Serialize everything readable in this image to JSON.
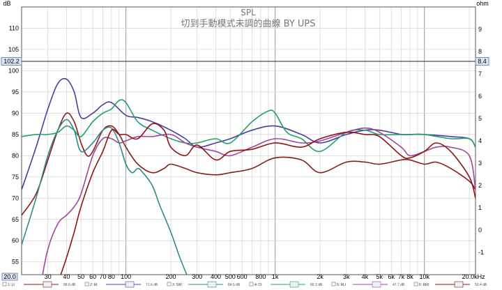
{
  "chart_data": {
    "type": "line",
    "title": "SPL",
    "subtitle": "切到手動模式未調的曲線 BY UPS",
    "ylabel": "dB",
    "y2label": "ohm",
    "xscale": "log",
    "xlim": [
      20,
      22000
    ],
    "ylim": [
      52,
      115
    ],
    "y2lim": [
      -2,
      10
    ],
    "cursor": {
      "value": 102.2,
      "label": "102.2",
      "right_label": "8.4"
    },
    "x_start_label": "20.0",
    "x_ticks": [
      {
        "v": 30,
        "t": "30"
      },
      {
        "v": 40,
        "t": "40"
      },
      {
        "v": 50,
        "t": "50"
      },
      {
        "v": 60,
        "t": "60"
      },
      {
        "v": 70,
        "t": "70"
      },
      {
        "v": 80,
        "t": "80"
      },
      {
        "v": 100,
        "t": "100"
      },
      {
        "v": 200,
        "t": "200"
      },
      {
        "v": 300,
        "t": "300"
      },
      {
        "v": 400,
        "t": "400"
      },
      {
        "v": 500,
        "t": "500"
      },
      {
        "v": 600,
        "t": "600"
      },
      {
        "v": 800,
        "t": "800"
      },
      {
        "v": 1000,
        "t": "1k"
      },
      {
        "v": 2000,
        "t": "2k"
      },
      {
        "v": 3000,
        "t": "3k"
      },
      {
        "v": 4000,
        "t": "4k"
      },
      {
        "v": 5000,
        "t": "5k"
      },
      {
        "v": 6000,
        "t": "6k"
      },
      {
        "v": 7000,
        "t": "7k"
      },
      {
        "v": 8000,
        "t": "8k"
      },
      {
        "v": 10000,
        "t": "10k"
      },
      {
        "v": 20000,
        "t": "20.0kHz"
      }
    ],
    "y_ticks": [
      55,
      60,
      65,
      70,
      75,
      80,
      85,
      90,
      95,
      100,
      105,
      110
    ],
    "y2_ticks": [
      -1,
      0,
      1,
      2,
      3,
      4,
      5,
      6,
      7,
      8,
      9
    ],
    "series": [
      {
        "name": "1: Lt",
        "value": "88.8 dB",
        "color": "#8b1a1a",
        "x": [
          20,
          25,
          30,
          35,
          40,
          45,
          50,
          55,
          60,
          70,
          80,
          90,
          100,
          120,
          150,
          180,
          200,
          250,
          300,
          400,
          500,
          700,
          1000,
          1500,
          2000,
          3000,
          4000,
          5000,
          7000,
          8000,
          10000,
          12000,
          15000,
          20000,
          22000
        ],
        "y": [
          66,
          71,
          79,
          86,
          90,
          88,
          83,
          80,
          81,
          86,
          87,
          85,
          82,
          78,
          76,
          77,
          78,
          77,
          76,
          75.5,
          76,
          77,
          79.5,
          79,
          76,
          78.5,
          78.5,
          78,
          79,
          79,
          78,
          78.5,
          77,
          74,
          72
        ]
      },
      {
        "name": "2: Rt",
        "value": "71.6 dB",
        "color": "#4b3c9e",
        "x": [
          20,
          25,
          30,
          35,
          40,
          45,
          50,
          60,
          70,
          80,
          100,
          120,
          150,
          200,
          250,
          300,
          400,
          500,
          700,
          1000,
          1500,
          2000,
          3000,
          4000,
          5000,
          7000,
          8000,
          10000,
          15000,
          20000,
          22000
        ],
        "y": [
          72,
          82,
          91,
          97,
          98,
          95,
          89,
          90,
          92,
          92.5,
          89.5,
          89,
          88,
          86,
          84,
          82,
          83,
          84,
          86,
          87,
          85,
          83,
          85,
          86,
          86,
          85,
          85,
          85,
          84.5,
          84,
          82
        ]
      },
      {
        "name": "3: SW",
        "value": "84.6 dB",
        "color": "#2e8a8a",
        "x": [
          20,
          25,
          30,
          35,
          40,
          45,
          50,
          60,
          70,
          80,
          90,
          100,
          110,
          120,
          130,
          150,
          170,
          200,
          230,
          270
        ],
        "y": [
          59,
          70,
          80,
          86,
          88.5,
          86,
          81,
          83,
          86,
          86.5,
          83,
          78,
          76,
          77,
          76,
          73,
          68,
          62,
          56,
          50
        ]
      },
      {
        "name": "4: Ct",
        "value": "89.3 dB",
        "color": "#22a06b",
        "x": [
          20,
          25,
          30,
          35,
          40,
          45,
          50,
          60,
          70,
          80,
          90,
          100,
          120,
          150,
          200,
          250,
          300,
          400,
          500,
          700,
          900,
          1000,
          1200,
          1500,
          2000,
          3000,
          4000,
          5000,
          7000,
          8000,
          10000,
          15000,
          20000,
          22000
        ],
        "y": [
          84.5,
          85,
          85,
          85.5,
          87,
          86,
          84.5,
          88,
          90,
          91,
          93,
          92.5,
          88,
          86,
          84,
          83,
          83,
          84,
          83,
          88,
          90.5,
          90,
          85.5,
          84,
          81,
          85.5,
          86,
          85,
          85,
          85,
          85,
          84,
          84,
          82
        ]
      },
      {
        "name": "5: RLt",
        "value": "47.7 dB",
        "color": "#a0449e",
        "x": [
          27,
          30,
          35,
          40,
          45,
          50,
          60,
          70,
          80,
          90,
          100,
          120,
          150,
          200,
          250,
          300,
          400,
          500,
          700,
          1000,
          1500,
          2000,
          3000,
          4000,
          5000,
          7000,
          8000,
          10000,
          12000,
          15000,
          20000,
          22000
        ],
        "y": [
          50,
          58,
          64,
          66,
          68,
          71,
          80,
          84,
          84,
          83,
          83.5,
          84.5,
          84.5,
          85,
          83,
          82,
          81,
          80,
          82,
          84,
          83,
          83.5,
          85.5,
          86.5,
          85.5,
          82,
          80,
          81,
          82,
          82,
          80,
          72
        ]
      },
      {
        "name": "6: RRt",
        "value": "50.4 dB",
        "color": "#8e1212",
        "x": [
          35,
          40,
          45,
          50,
          60,
          70,
          80,
          90,
          100,
          120,
          150,
          180,
          200,
          250,
          300,
          400,
          500,
          700,
          1000,
          1500,
          2000,
          3000,
          4000,
          5000,
          7000,
          8000,
          10000,
          12000,
          15000,
          20000,
          22000
        ],
        "y": [
          50,
          56,
          62,
          68,
          76,
          81,
          86,
          85,
          85,
          84,
          87.5,
          86,
          82,
          80,
          82.5,
          79,
          81,
          81.5,
          83,
          82,
          84,
          85.5,
          85,
          84.5,
          80,
          79.5,
          81,
          83,
          81,
          75,
          70
        ]
      }
    ]
  }
}
